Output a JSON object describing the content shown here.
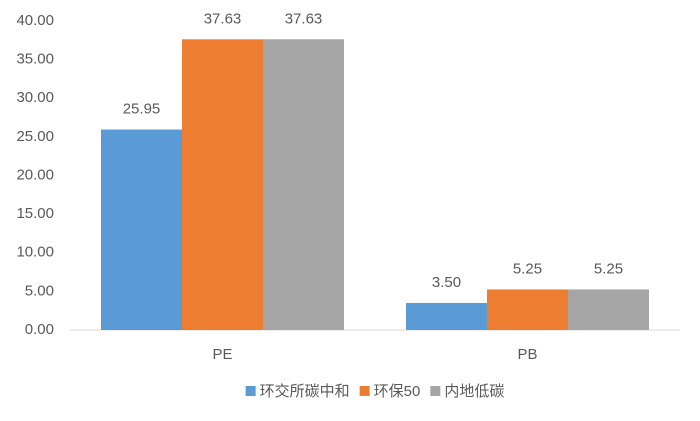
{
  "chart_data": {
    "type": "bar",
    "categories": [
      "PE",
      "PB"
    ],
    "series": [
      {
        "name": "环交所碳中和",
        "color": "#5b9bd5",
        "values": [
          25.95,
          3.5
        ],
        "value_labels": [
          "25.95",
          "3.50"
        ]
      },
      {
        "name": "环保50",
        "color": "#ed7d31",
        "values": [
          37.63,
          5.25
        ],
        "value_labels": [
          "37.63",
          "5.25"
        ]
      },
      {
        "name": "内地低碳",
        "color": "#a5a5a5",
        "values": [
          37.63,
          5.25
        ],
        "value_labels": [
          "37.63",
          "5.25"
        ]
      }
    ],
    "ylim": [
      0,
      40
    ],
    "yticks": [
      {
        "value": 0,
        "label": "0.00"
      },
      {
        "value": 5,
        "label": "5.00"
      },
      {
        "value": 10,
        "label": "10.00"
      },
      {
        "value": 15,
        "label": "15.00"
      },
      {
        "value": 20,
        "label": "20.00"
      },
      {
        "value": 25,
        "label": "25.00"
      },
      {
        "value": 30,
        "label": "30.00"
      },
      {
        "value": 35,
        "label": "35.00"
      },
      {
        "value": 40,
        "label": "40.00"
      }
    ],
    "legend": "bottom"
  }
}
